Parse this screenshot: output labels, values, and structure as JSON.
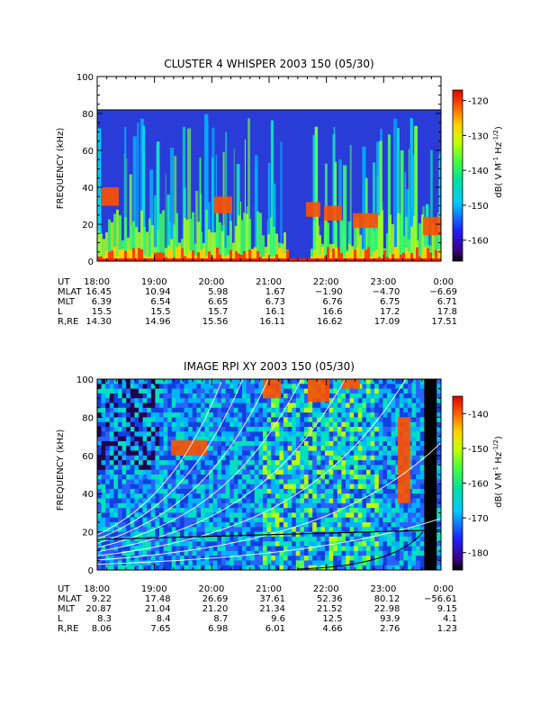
{
  "chart_data": [
    {
      "type": "heatmap",
      "title": "CLUSTER 4 WHISPER 2003 150 (05/30)",
      "ylabel": "FREQUENCY (kHz)",
      "ylim": [
        0,
        100
      ],
      "y_ticks": [
        "0",
        "20",
        "40",
        "60",
        "80",
        "100"
      ],
      "colorbar": {
        "label": "dB( V M",
        "sup1": "-1",
        "mid": " Hz",
        "sup2": "-1/2",
        "tail": ")",
        "range": [
          -166,
          -117
        ],
        "ticks": [
          "-120",
          "-130",
          "-140",
          "-150",
          "-160"
        ]
      },
      "ephemeris": {
        "row_labels": [
          "UT",
          "MLAT",
          "MLT",
          "L",
          "R,RE"
        ],
        "columns": [
          [
            "18:00",
            "16.45",
            "6.39",
            "15.5",
            "14.30"
          ],
          [
            "19:00",
            "10.94",
            "6.54",
            "15.5",
            "14.96"
          ],
          [
            "20:00",
            "5.98",
            "6.65",
            "15.7",
            "15.56"
          ],
          [
            "21:00",
            "1.67",
            "6.73",
            "16.1",
            "16.11"
          ],
          [
            "22:00",
            "−1.90",
            "6.76",
            "16.6",
            "16.62"
          ],
          [
            "23:00",
            "−4.70",
            "6.75",
            "17.2",
            "17.09"
          ],
          [
            "0:00",
            "−6.69",
            "6.71",
            "17.8",
            "17.51"
          ]
        ]
      }
    },
    {
      "type": "heatmap",
      "title": "IMAGE RPI XY 2003 150 (05/30)",
      "ylabel": "FREQUENCY (kHz)",
      "ylim": [
        0,
        100
      ],
      "y_ticks": [
        "0",
        "20",
        "40",
        "60",
        "80",
        "100"
      ],
      "colorbar": {
        "label": "dB( V M",
        "sup1": "-1",
        "mid": " Hz",
        "sup2": "-1/2",
        "tail": ")",
        "range": [
          -185,
          -135
        ],
        "ticks": [
          "-140",
          "-150",
          "-160",
          "-170",
          "-180"
        ]
      },
      "ephemeris": {
        "row_labels": [
          "UT",
          "MLAT",
          "MLT",
          "L",
          "R,RE"
        ],
        "columns": [
          [
            "18:00",
            "9.22",
            "20.87",
            "8.3",
            "8.06"
          ],
          [
            "19:00",
            "17.48",
            "21.04",
            "8.4",
            "7.65"
          ],
          [
            "20:00",
            "26.69",
            "21.20",
            "8.7",
            "6.98"
          ],
          [
            "21:00",
            "37.61",
            "21.34",
            "9.6",
            "6.01"
          ],
          [
            "22:00",
            "52.36",
            "21.52",
            "12.5",
            "4.66"
          ],
          [
            "23:00",
            "80.12",
            "22.98",
            "93.9",
            "2.76"
          ],
          [
            "0:00",
            "−56.61",
            "9.15",
            "4.1",
            "1.23"
          ]
        ]
      }
    }
  ]
}
